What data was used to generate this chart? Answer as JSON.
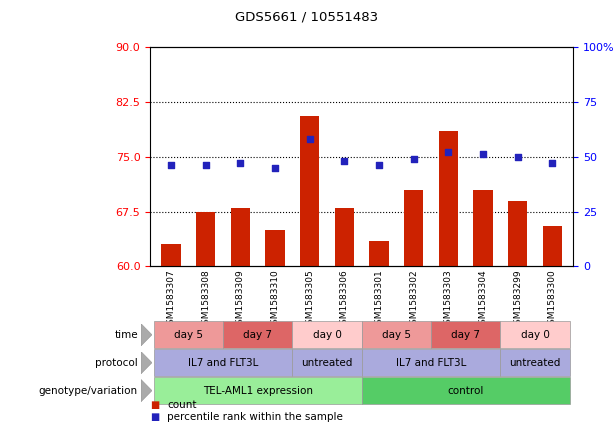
{
  "title": "GDS5661 / 10551483",
  "samples": [
    "GSM1583307",
    "GSM1583308",
    "GSM1583309",
    "GSM1583310",
    "GSM1583305",
    "GSM1583306",
    "GSM1583301",
    "GSM1583302",
    "GSM1583303",
    "GSM1583304",
    "GSM1583299",
    "GSM1583300"
  ],
  "bar_values": [
    63.0,
    67.5,
    68.0,
    65.0,
    80.5,
    68.0,
    63.5,
    70.5,
    78.5,
    70.5,
    69.0,
    65.5
  ],
  "dot_values": [
    46,
    46,
    47,
    45,
    58,
    48,
    46,
    49,
    52,
    51,
    50,
    47
  ],
  "ylim_left": [
    60,
    90
  ],
  "ylim_right": [
    0,
    100
  ],
  "yticks_left": [
    60,
    67.5,
    75,
    82.5,
    90
  ],
  "yticks_right": [
    0,
    25,
    50,
    75,
    100
  ],
  "hlines": [
    82.5,
    75,
    67.5
  ],
  "bar_color": "#cc2200",
  "dot_color": "#2222bb",
  "bar_width": 0.55,
  "background_color": "#ffffff",
  "plot_bg_color": "#ffffff",
  "geno_data": [
    {
      "label": "TEL-AML1 expression",
      "start": 0,
      "end": 5,
      "color": "#99ee99"
    },
    {
      "label": "control",
      "start": 6,
      "end": 11,
      "color": "#55cc66"
    }
  ],
  "proto_data": [
    {
      "label": "IL7 and FLT3L",
      "start": 0,
      "end": 3,
      "color": "#aaaadd"
    },
    {
      "label": "untreated",
      "start": 4,
      "end": 5,
      "color": "#aaaadd"
    },
    {
      "label": "IL7 and FLT3L",
      "start": 6,
      "end": 9,
      "color": "#aaaadd"
    },
    {
      "label": "untreated",
      "start": 10,
      "end": 11,
      "color": "#aaaadd"
    }
  ],
  "time_data": [
    {
      "label": "day 5",
      "start": 0,
      "end": 1,
      "color": "#ee9999"
    },
    {
      "label": "day 7",
      "start": 2,
      "end": 3,
      "color": "#dd6666"
    },
    {
      "label": "day 0",
      "start": 4,
      "end": 5,
      "color": "#ffcccc"
    },
    {
      "label": "day 5",
      "start": 6,
      "end": 7,
      "color": "#ee9999"
    },
    {
      "label": "day 7",
      "start": 8,
      "end": 9,
      "color": "#dd6666"
    },
    {
      "label": "day 0",
      "start": 10,
      "end": 11,
      "color": "#ffcccc"
    }
  ],
  "row_labels": [
    "genotype/variation",
    "protocol",
    "time"
  ],
  "legend_items": [
    "count",
    "percentile rank within the sample"
  ],
  "legend_colors": [
    "#cc2200",
    "#2222bb"
  ]
}
